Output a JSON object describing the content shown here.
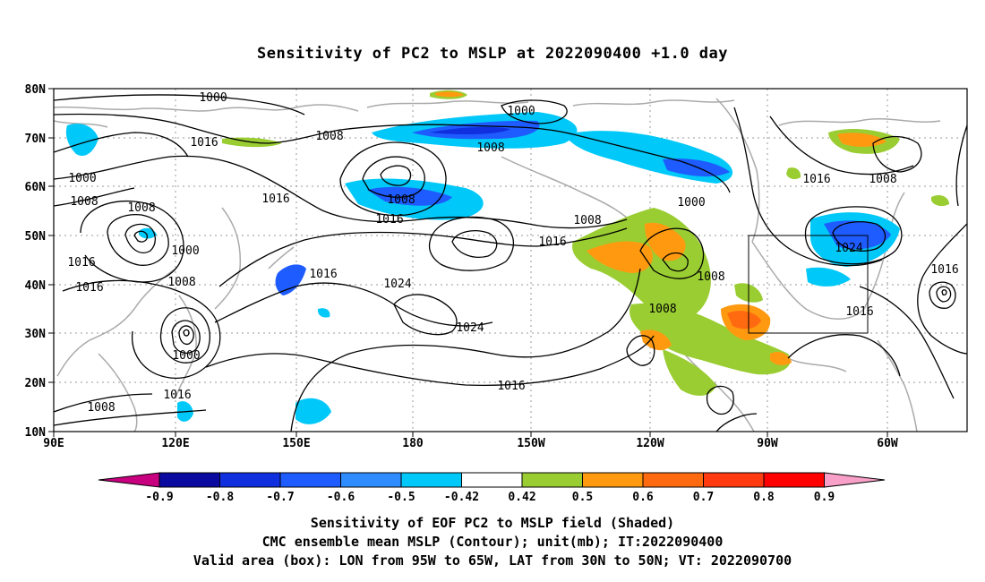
{
  "title": "Sensitivity of PC2 to MSLP at 2022090400 +1.0 day",
  "map": {
    "lat_labels": [
      "80N",
      "70N",
      "60N",
      "50N",
      "40N",
      "30N",
      "20N",
      "10N"
    ],
    "lon_labels": [
      "90E",
      "120E",
      "150E",
      "180",
      "150W",
      "120W",
      "90W",
      "60W"
    ],
    "extent": {
      "lon_min": "90E",
      "lon_max": "50W",
      "lat_min": "10N",
      "lat_max": "80N"
    },
    "contour_interval_mb": 8,
    "contour_labels": [
      "1000",
      "1000",
      "1008",
      "1016",
      "1000",
      "1008",
      "1008",
      "1016",
      "1016",
      "1008",
      "1008",
      "1016",
      "1000",
      "1016",
      "1008",
      "1016",
      "1008",
      "1016",
      "1000",
      "1016",
      "1024",
      "1024",
      "1008",
      "1008",
      "1016",
      "1000",
      "1024",
      "1008",
      "1016",
      "1016",
      "1016"
    ],
    "valid_box": {
      "lon_west": "95W",
      "lon_east": "65W",
      "lat_south": "30N",
      "lat_north": "50N"
    },
    "colors": {
      "contour": "#000000",
      "coastline": "#aaaaaa",
      "grid": "#999999"
    }
  },
  "colorbar": {
    "labels": [
      "-0.9",
      "-0.8",
      "-0.7",
      "-0.6",
      "-0.5",
      "-0.42",
      "0.42",
      "0.5",
      "0.6",
      "0.7",
      "0.8",
      "0.9"
    ],
    "under_color": "#c8007f",
    "over_color": "#f8a0c8",
    "colors": [
      "#0a0aa0",
      "#1030e0",
      "#1e5cff",
      "#2e8cff",
      "#00c8f8",
      "#ffffff",
      "#9acd32",
      "#ff9a10",
      "#ff6a10",
      "#ff3a10",
      "#ff0000"
    ]
  },
  "captions": [
    "Sensitivity of EOF PC2 to MSLP field (Shaded)",
    "CMC ensemble mean MSLP (Contour); unit(mb); IT:2022090400",
    "Valid area (box): LON from 95W to 65W, LAT from 30N to 50N; VT: 2022090700"
  ]
}
